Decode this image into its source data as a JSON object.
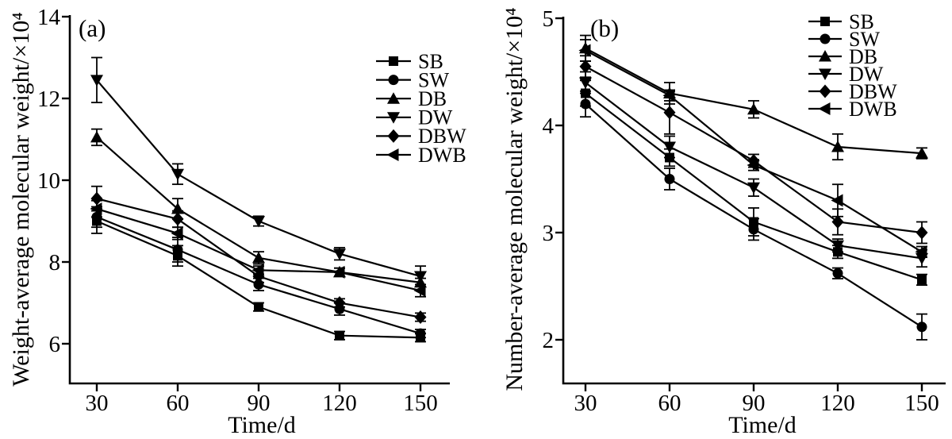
{
  "figure": {
    "background": "#ffffff",
    "ink_color": "#000000",
    "panels": [
      "(a)",
      "(b)"
    ]
  },
  "chart_data": [
    {
      "type": "line",
      "panel_label": "(a)",
      "xlabel": "Time/d",
      "ylabel": "Weight-average molecular weight/×10⁴",
      "x": [
        30,
        60,
        90,
        120,
        150
      ],
      "yticks": [
        14,
        12,
        10,
        8,
        6
      ],
      "ylim": [
        5.1,
        14
      ],
      "grid": false,
      "legend_position": "upper-right-inset",
      "legend_order": [
        "SB",
        "SW",
        "DB",
        "DW",
        "DBW",
        "DWB"
      ],
      "series": [
        {
          "name": "SB",
          "marker": "square",
          "values": [
            9.0,
            8.15,
            6.9,
            6.2,
            6.15
          ],
          "errors": [
            0.3,
            0.25,
            0.1,
            0.1,
            0.1
          ]
        },
        {
          "name": "SW",
          "marker": "circle",
          "values": [
            9.1,
            8.3,
            7.45,
            6.85,
            6.25
          ],
          "errors": [
            0.25,
            0.3,
            0.15,
            0.15,
            0.1
          ]
        },
        {
          "name": "DB",
          "marker": "triangle-up",
          "values": [
            11.05,
            9.3,
            8.1,
            7.75,
            7.5
          ],
          "errors": [
            0.2,
            0.25,
            0.15,
            0.1,
            0.1
          ]
        },
        {
          "name": "DW",
          "marker": "triangle-down",
          "values": [
            12.45,
            10.15,
            9.0,
            8.2,
            7.65
          ],
          "errors": [
            0.55,
            0.25,
            0.12,
            0.15,
            0.25
          ]
        },
        {
          "name": "DBW",
          "marker": "diamond",
          "values": [
            9.55,
            9.05,
            7.65,
            7.0,
            6.65
          ],
          "errors": [
            0.3,
            0.2,
            0.15,
            0.1,
            0.1
          ]
        },
        {
          "name": "DWB",
          "marker": "triangle-left",
          "values": [
            9.3,
            8.7,
            7.8,
            7.75,
            7.3
          ],
          "errors": [
            0.2,
            0.15,
            0.1,
            0.1,
            0.15
          ]
        }
      ]
    },
    {
      "type": "line",
      "panel_label": "(b)",
      "xlabel": "Time/d",
      "ylabel": "Number-average molecular weight/×10⁴",
      "x": [
        30,
        60,
        90,
        120,
        150
      ],
      "yticks": [
        5,
        4,
        3,
        2
      ],
      "ylim": [
        1.6,
        5
      ],
      "grid": false,
      "legend_position": "upper-right-inset",
      "legend_order": [
        "SB",
        "SW",
        "DB",
        "DW",
        "DBW",
        "DWB"
      ],
      "series": [
        {
          "name": "SB",
          "marker": "square",
          "values": [
            4.3,
            3.7,
            3.1,
            2.82,
            2.56
          ],
          "errors": [
            0.12,
            0.08,
            0.13,
            0.06,
            0.05
          ]
        },
        {
          "name": "SW",
          "marker": "circle",
          "values": [
            4.2,
            3.5,
            3.03,
            2.62,
            2.12
          ],
          "errors": [
            0.12,
            0.1,
            0.1,
            0.05,
            0.12
          ]
        },
        {
          "name": "DB",
          "marker": "triangle-up",
          "values": [
            4.72,
            4.3,
            4.15,
            3.8,
            3.74
          ],
          "errors": [
            0.12,
            0.1,
            0.08,
            0.12,
            0.05
          ]
        },
        {
          "name": "DW",
          "marker": "triangle-down",
          "values": [
            4.4,
            3.8,
            3.42,
            2.88,
            2.76
          ],
          "errors": [
            0.1,
            0.1,
            0.08,
            0.06,
            0.08
          ]
        },
        {
          "name": "DBW",
          "marker": "diamond",
          "values": [
            4.55,
            4.12,
            3.67,
            3.1,
            3.0
          ],
          "errors": [
            0.1,
            0.2,
            0.06,
            0.12,
            0.1
          ]
        },
        {
          "name": "DWB",
          "marker": "triangle-left",
          "values": [
            4.7,
            4.28,
            3.63,
            3.3,
            2.82
          ],
          "errors": [
            0.1,
            0.05,
            0.05,
            0.15,
            0.05
          ]
        }
      ]
    }
  ]
}
